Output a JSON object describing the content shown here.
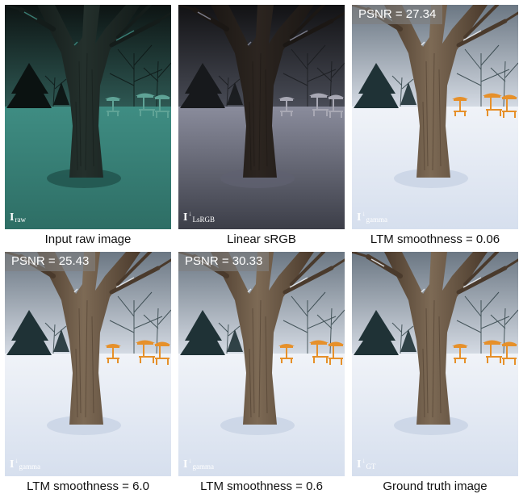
{
  "panels": [
    {
      "caption": "Input raw image",
      "psnr": "",
      "symbol_base": "I",
      "symbol_sup": "",
      "symbol_sub": "raw",
      "tone": "raw"
    },
    {
      "caption": "Linear sRGB",
      "psnr": "",
      "symbol_base": "I",
      "symbol_sup": "↓",
      "symbol_sub": "LsRGB",
      "tone": "lsrgb"
    },
    {
      "caption": "LTM smoothness = 0.06",
      "psnr": "PSNR = 27.34",
      "symbol_base": "I",
      "symbol_sup": "↓",
      "symbol_sub": "gamma",
      "tone": "bright"
    },
    {
      "caption": "LTM smoothness = 6.0",
      "psnr": "PSNR = 25.43",
      "symbol_base": "I",
      "symbol_sup": "↓",
      "symbol_sub": "gamma",
      "tone": "bright"
    },
    {
      "caption": "LTM smoothness = 0.6",
      "psnr": "PSNR = 30.33",
      "symbol_base": "I",
      "symbol_sup": "↓",
      "symbol_sub": "gamma",
      "tone": "bright"
    },
    {
      "caption": "Ground truth image",
      "psnr": "",
      "symbol_base": "I",
      "symbol_sup": "↓",
      "symbol_sub": "GT",
      "tone": "bright"
    }
  ],
  "tones": {
    "raw": {
      "sky_top": "#0d1413",
      "sky_bottom": "#2f5a55",
      "snow_top": "#3f8d83",
      "snow_bottom": "#2e6e65",
      "trunk": "#141c1a",
      "trunk_hi": "#24302c",
      "tree": "#0b1211",
      "table": "#5fa396",
      "shadow": "#1e4d47"
    },
    "lsrgb": {
      "sky_top": "#121214",
      "sky_bottom": "#4a4d58",
      "snow_top": "#8a8c9c",
      "snow_bottom": "#3c3e48",
      "trunk": "#1b1714",
      "trunk_hi": "#2c2520",
      "tree": "#17191c",
      "table": "#a8a8b4",
      "shadow": "#5f6170"
    },
    "bright": {
      "sky_top": "#6b7783",
      "sky_bottom": "#d7dde6",
      "snow_top": "#f0f3f8",
      "snow_bottom": "#d6dfee",
      "trunk": "#4a3a2c",
      "trunk_hi": "#7d6a55",
      "tree": "#1f3236",
      "table": "#e6902a",
      "shadow": "#c5d0e2"
    }
  }
}
